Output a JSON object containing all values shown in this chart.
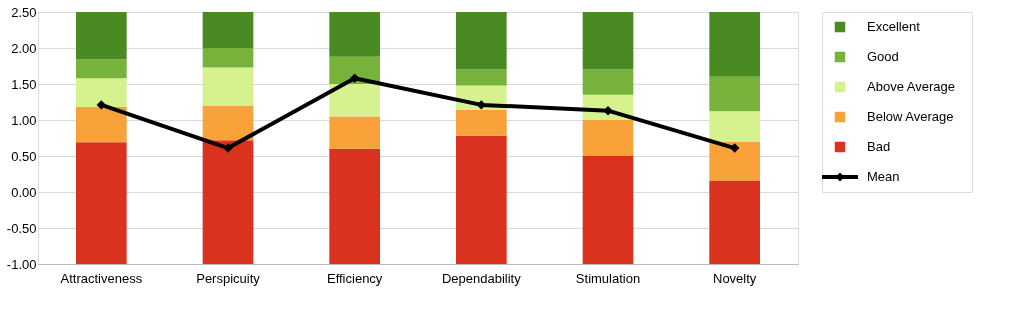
{
  "chart_data": {
    "type": "bar",
    "categories": [
      "Attractiveness",
      "Perspicuity",
      "Efficiency",
      "Dependability",
      "Stimulation",
      "Novelty"
    ],
    "series": [
      {
        "name": "Bad",
        "color": "#d9321f",
        "base": [
          -1,
          -1,
          -1,
          -1,
          -1,
          -1
        ],
        "values": [
          1.69,
          1.72,
          1.6,
          1.78,
          1.5,
          1.16
        ]
      },
      {
        "name": "Below Average",
        "color": "#f9a23a",
        "base": [
          0.69,
          0.72,
          0.6,
          0.78,
          0.5,
          0.16
        ],
        "values": [
          0.49,
          0.48,
          0.45,
          0.36,
          0.5,
          0.54
        ]
      },
      {
        "name": "Above Average",
        "color": "#d5f28f",
        "base": [
          1.18,
          1.2,
          1.05,
          1.14,
          1.0,
          0.7
        ],
        "values": [
          0.4,
          0.53,
          0.45,
          0.34,
          0.35,
          0.42
        ]
      },
      {
        "name": "Good",
        "color": "#77b23a",
        "base": [
          1.58,
          1.73,
          1.5,
          1.48,
          1.35,
          1.12
        ],
        "values": [
          0.26,
          0.27,
          0.38,
          0.22,
          0.35,
          0.48
        ]
      },
      {
        "name": "Excellent",
        "color": "#4a8a22",
        "base": [
          1.84,
          2.0,
          1.88,
          1.7,
          1.7,
          1.6
        ],
        "values": [
          0.66,
          0.5,
          0.62,
          0.8,
          0.8,
          0.9
        ]
      },
      {
        "name": "Mean",
        "type": "line",
        "color": "#000000",
        "marker": "diamond",
        "line_style": "solid",
        "values": [
          1.21,
          0.61,
          1.58,
          1.21,
          1.13,
          0.61
        ]
      }
    ],
    "ylim": [
      -1,
      2.5
    ],
    "yticks": [
      {
        "value": -1,
        "label": "-1.00"
      },
      {
        "value": -0.5,
        "label": "-0.50"
      },
      {
        "value": 0,
        "label": "0.00"
      },
      {
        "value": 0.5,
        "label": "0.50"
      },
      {
        "value": 1,
        "label": "1.00"
      },
      {
        "value": 1.5,
        "label": "1.50"
      },
      {
        "value": 2,
        "label": "2.00"
      },
      {
        "value": 2.5,
        "label": "2.50"
      }
    ],
    "grid": "y",
    "legend": "right"
  }
}
